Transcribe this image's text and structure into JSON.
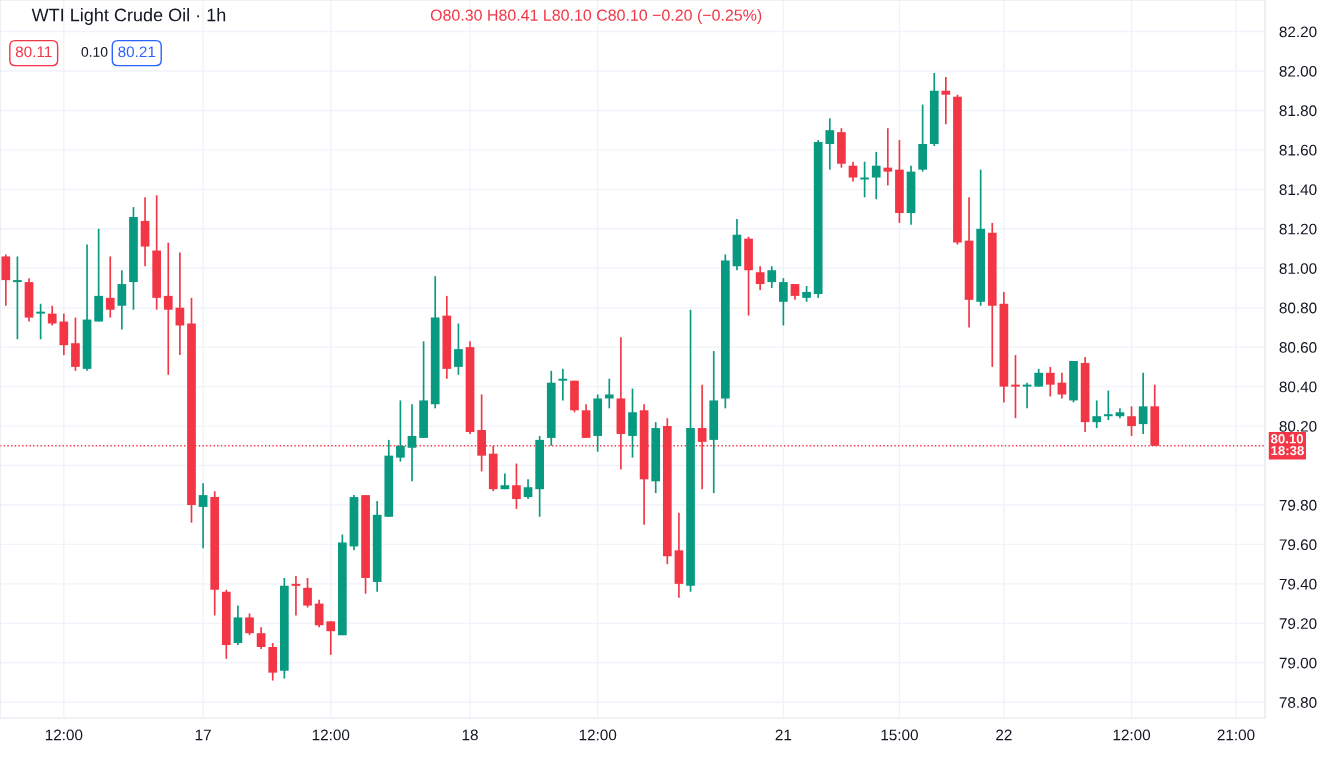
{
  "chart_data": {
    "type": "candlestick",
    "title": "WTI Light Crude Oil · 1h",
    "annotations": [
      "O80.30 H80.41 L80.10 C80.10 −0.20 (−0.25%)",
      "80.11",
      "0.10",
      "80.21"
    ],
    "categories": [
      null,
      null,
      null,
      null,
      null,
      "12:00",
      null,
      null,
      null,
      null,
      null,
      null,
      null,
      null,
      null,
      null,
      null,
      "17",
      null,
      null,
      null,
      null,
      null,
      null,
      null,
      null,
      null,
      null,
      "12:00",
      null,
      null,
      null,
      null,
      null,
      null,
      null,
      null,
      null,
      null,
      null,
      "18",
      null,
      null,
      null,
      null,
      null,
      null,
      null,
      null,
      null,
      null,
      "12:00",
      null,
      null,
      null,
      null,
      null,
      null,
      null,
      null,
      null,
      null,
      null,
      null,
      null,
      null,
      null,
      "21",
      null,
      null,
      null,
      null,
      null,
      null,
      null,
      null,
      null,
      "15:00",
      null,
      null,
      null,
      null,
      null,
      null,
      null,
      null,
      "22",
      null,
      null,
      null,
      null,
      null,
      null,
      null,
      null,
      null,
      null,
      "12:00",
      null,
      null,
      null,
      null,
      null,
      null,
      null,
      null,
      "21:00",
      null,
      null
    ],
    "ohlc": [
      [
        81.06,
        81.07,
        80.81,
        80.94
      ],
      [
        80.93,
        81.06,
        80.64,
        80.94
      ],
      [
        80.93,
        80.95,
        80.73,
        80.75
      ],
      [
        80.77,
        80.82,
        80.64,
        80.78
      ],
      [
        80.77,
        80.81,
        80.71,
        80.72
      ],
      [
        80.73,
        80.77,
        80.56,
        80.61
      ],
      [
        80.62,
        80.75,
        80.48,
        80.5
      ],
      [
        80.49,
        81.12,
        80.48,
        80.74
      ],
      [
        80.73,
        81.2,
        80.73,
        80.86
      ],
      [
        80.85,
        81.06,
        80.75,
        80.79
      ],
      [
        80.81,
        80.99,
        80.69,
        80.92
      ],
      [
        80.93,
        81.31,
        80.79,
        81.26
      ],
      [
        81.24,
        81.36,
        81.01,
        81.11
      ],
      [
        81.09,
        81.37,
        80.79,
        80.85
      ],
      [
        80.86,
        81.13,
        80.46,
        80.79
      ],
      [
        80.8,
        81.08,
        80.56,
        80.71
      ],
      [
        80.72,
        80.85,
        79.71,
        79.8
      ],
      [
        79.79,
        79.91,
        79.58,
        79.85
      ],
      [
        79.84,
        79.87,
        79.24,
        79.37
      ],
      [
        79.36,
        79.37,
        79.02,
        79.09
      ],
      [
        79.1,
        79.29,
        79.09,
        79.23
      ],
      [
        79.23,
        79.25,
        79.14,
        79.15
      ],
      [
        79.15,
        79.18,
        79.07,
        79.08
      ],
      [
        79.08,
        79.1,
        78.91,
        78.95
      ],
      [
        78.96,
        79.43,
        78.92,
        79.39
      ],
      [
        79.4,
        79.44,
        79.24,
        79.39
      ],
      [
        79.38,
        79.43,
        79.28,
        79.29
      ],
      [
        79.3,
        79.32,
        79.18,
        79.19
      ],
      [
        79.21,
        79.21,
        79.04,
        79.16
      ],
      [
        79.14,
        79.65,
        79.14,
        79.61
      ],
      [
        79.59,
        79.85,
        79.57,
        79.84
      ],
      [
        79.85,
        79.85,
        79.35,
        79.43
      ],
      [
        79.41,
        79.82,
        79.36,
        79.75
      ],
      [
        79.74,
        80.13,
        79.74,
        80.05
      ],
      [
        80.04,
        80.33,
        80.02,
        80.1
      ],
      [
        80.09,
        80.31,
        79.92,
        80.15
      ],
      [
        80.14,
        80.63,
        80.14,
        80.33
      ],
      [
        80.31,
        80.96,
        80.29,
        80.75
      ],
      [
        80.76,
        80.86,
        80.44,
        80.49
      ],
      [
        80.5,
        80.72,
        80.46,
        80.59
      ],
      [
        80.6,
        80.63,
        80.16,
        80.17
      ],
      [
        80.18,
        80.36,
        79.97,
        80.05
      ],
      [
        80.06,
        80.1,
        79.87,
        79.88
      ],
      [
        79.88,
        79.96,
        79.88,
        79.9
      ],
      [
        79.9,
        80.01,
        79.78,
        79.83
      ],
      [
        79.84,
        79.93,
        79.83,
        79.89
      ],
      [
        79.88,
        80.15,
        79.74,
        80.13
      ],
      [
        80.14,
        80.48,
        80.1,
        80.42
      ],
      [
        80.43,
        80.49,
        80.33,
        80.44
      ],
      [
        80.43,
        80.43,
        80.27,
        80.28
      ],
      [
        80.28,
        80.31,
        80.14,
        80.14
      ],
      [
        80.15,
        80.36,
        80.07,
        80.34
      ],
      [
        80.34,
        80.44,
        80.29,
        80.36
      ],
      [
        80.34,
        80.65,
        79.98,
        80.16
      ],
      [
        80.15,
        80.39,
        80.04,
        80.27
      ],
      [
        80.28,
        80.31,
        79.7,
        79.93
      ],
      [
        79.92,
        80.22,
        79.86,
        80.19
      ],
      [
        80.2,
        80.24,
        79.5,
        79.54
      ],
      [
        79.57,
        79.76,
        79.33,
        79.4
      ],
      [
        79.39,
        80.79,
        79.36,
        80.19
      ],
      [
        80.19,
        80.41,
        79.88,
        80.12
      ],
      [
        80.13,
        80.58,
        79.86,
        80.33
      ],
      [
        80.34,
        81.07,
        80.29,
        81.04
      ],
      [
        81.01,
        81.25,
        80.99,
        81.17
      ],
      [
        81.15,
        81.16,
        80.76,
        80.99
      ],
      [
        80.98,
        81.01,
        80.89,
        80.92
      ],
      [
        80.93,
        81.01,
        80.9,
        80.99
      ],
      [
        80.83,
        80.95,
        80.71,
        80.93
      ],
      [
        80.92,
        80.92,
        80.84,
        80.86
      ],
      [
        80.85,
        80.91,
        80.83,
        80.88
      ],
      [
        80.87,
        81.65,
        80.85,
        81.64
      ],
      [
        81.63,
        81.76,
        81.5,
        81.7
      ],
      [
        81.69,
        81.71,
        81.51,
        81.53
      ],
      [
        81.52,
        81.54,
        81.44,
        81.46
      ],
      [
        81.45,
        81.54,
        81.36,
        81.46
      ],
      [
        81.46,
        81.59,
        81.35,
        81.52
      ],
      [
        81.51,
        81.71,
        81.42,
        81.49
      ],
      [
        81.5,
        81.65,
        81.23,
        81.28
      ],
      [
        81.28,
        81.52,
        81.22,
        81.49
      ],
      [
        81.5,
        81.83,
        81.49,
        81.63
      ],
      [
        81.63,
        81.99,
        81.62,
        81.9
      ],
      [
        81.9,
        81.97,
        81.73,
        81.88
      ],
      [
        81.87,
        81.88,
        81.12,
        81.13
      ],
      [
        81.14,
        81.36,
        80.7,
        80.84
      ],
      [
        80.83,
        81.5,
        80.81,
        81.2
      ],
      [
        81.18,
        81.23,
        80.5,
        80.81
      ],
      [
        80.82,
        80.88,
        80.32,
        80.4
      ],
      [
        80.41,
        80.56,
        80.24,
        80.4
      ],
      [
        80.4,
        80.42,
        80.29,
        80.41
      ],
      [
        80.4,
        80.49,
        80.4,
        80.47
      ],
      [
        80.47,
        80.5,
        80.35,
        80.41
      ],
      [
        80.42,
        80.47,
        80.34,
        80.36
      ],
      [
        80.33,
        80.53,
        80.32,
        80.53
      ],
      [
        80.52,
        80.55,
        80.17,
        80.22
      ],
      [
        80.22,
        80.33,
        80.19,
        80.25
      ],
      [
        80.25,
        80.38,
        80.23,
        80.26
      ],
      [
        80.25,
        80.29,
        80.24,
        80.27
      ],
      [
        80.25,
        80.3,
        80.15,
        80.2
      ],
      [
        80.21,
        80.47,
        80.16,
        80.3
      ],
      [
        80.3,
        80.41,
        80.1,
        80.1
      ],
      null,
      null,
      null,
      null,
      null,
      null,
      null,
      null,
      null
    ],
    "ylim": [
      78.72,
      82.36
    ],
    "yticks": [
      {
        "value": 78.8,
        "label": "78.80"
      },
      {
        "value": 79.0,
        "label": "79.00"
      },
      {
        "value": 79.2,
        "label": "79.20"
      },
      {
        "value": 79.4,
        "label": "79.40"
      },
      {
        "value": 79.6,
        "label": "79.60"
      },
      {
        "value": 79.8,
        "label": "79.80"
      },
      {
        "value": 80.0,
        "label": null
      },
      {
        "value": 80.2,
        "label": "80.20"
      },
      {
        "value": 80.4,
        "label": "80.40"
      },
      {
        "value": 80.6,
        "label": "80.60"
      },
      {
        "value": 80.8,
        "label": "80.80"
      },
      {
        "value": 81.0,
        "label": "81.00"
      },
      {
        "value": 81.2,
        "label": "81.20"
      },
      {
        "value": 81.4,
        "label": "81.40"
      },
      {
        "value": 81.6,
        "label": "81.60"
      },
      {
        "value": 81.8,
        "label": "81.80"
      },
      {
        "value": 82.0,
        "label": "82.00"
      },
      {
        "value": 82.2,
        "label": "82.20"
      }
    ],
    "ref_lines": [
      {
        "axis": "y",
        "value": 80.1,
        "label": "80.10\n18:38",
        "color": "#f23645",
        "line_style": "dotted"
      }
    ],
    "grid": true
  }
}
